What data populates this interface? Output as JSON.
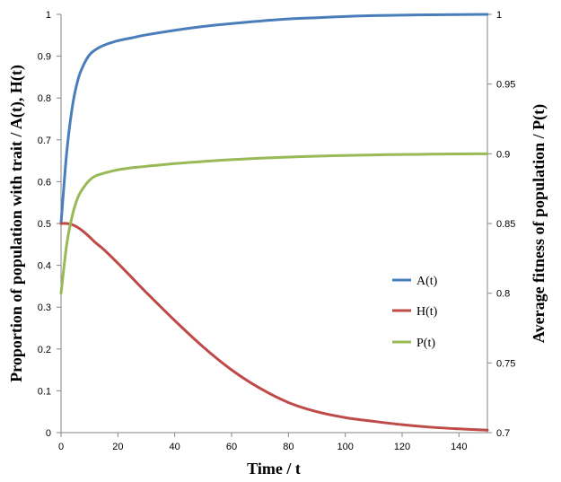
{
  "chart_data": {
    "type": "line",
    "xlabel": "Time  /  t",
    "ylabel_left": "Proportion of population  with trait  / A(t), H(t)",
    "ylabel_right": "Average fitness of population / P(t)",
    "xlim": [
      0,
      150
    ],
    "ylim_left": [
      0,
      1
    ],
    "ylim_right": [
      0.7,
      1
    ],
    "x_ticks": [
      0,
      20,
      40,
      60,
      80,
      100,
      120,
      140
    ],
    "y_left_ticks": [
      "0",
      "0.1",
      "0.2",
      "0.3",
      "0.4",
      "0.5",
      "0.6",
      "0.7",
      "0.8",
      "0.9",
      "1"
    ],
    "y_right_ticks": [
      "0.7",
      "0.75",
      "0.8",
      "0.85",
      "0.9",
      "0.95",
      "1"
    ],
    "grid": false,
    "legend_position": "right-center",
    "x": [
      0,
      2,
      4,
      6,
      8,
      10,
      12,
      15,
      20,
      25,
      30,
      40,
      50,
      60,
      70,
      80,
      90,
      100,
      110,
      120,
      130,
      140,
      150
    ],
    "series": [
      {
        "name": "A(t)",
        "axis": "left",
        "color": "#4a7ebb",
        "values": [
          0.5,
          0.67,
          0.78,
          0.845,
          0.88,
          0.903,
          0.915,
          0.926,
          0.937,
          0.944,
          0.951,
          0.962,
          0.971,
          0.978,
          0.984,
          0.989,
          0.992,
          0.995,
          0.997,
          0.998,
          0.999,
          0.9995,
          1.0
        ]
      },
      {
        "name": "H(t)",
        "axis": "left",
        "color": "#be4b48",
        "values": [
          0.5,
          0.5,
          0.497,
          0.49,
          0.48,
          0.468,
          0.455,
          0.438,
          0.405,
          0.37,
          0.335,
          0.268,
          0.205,
          0.15,
          0.106,
          0.072,
          0.05,
          0.036,
          0.027,
          0.019,
          0.013,
          0.009,
          0.006
        ]
      },
      {
        "name": "P(t)",
        "axis": "right",
        "color": "#98b954",
        "values": [
          0.8,
          0.835,
          0.856,
          0.869,
          0.876,
          0.881,
          0.884,
          0.886,
          0.8885,
          0.89,
          0.891,
          0.893,
          0.8945,
          0.8958,
          0.8968,
          0.8976,
          0.8983,
          0.8988,
          0.8992,
          0.8995,
          0.8997,
          0.8999,
          0.9
        ]
      }
    ]
  }
}
